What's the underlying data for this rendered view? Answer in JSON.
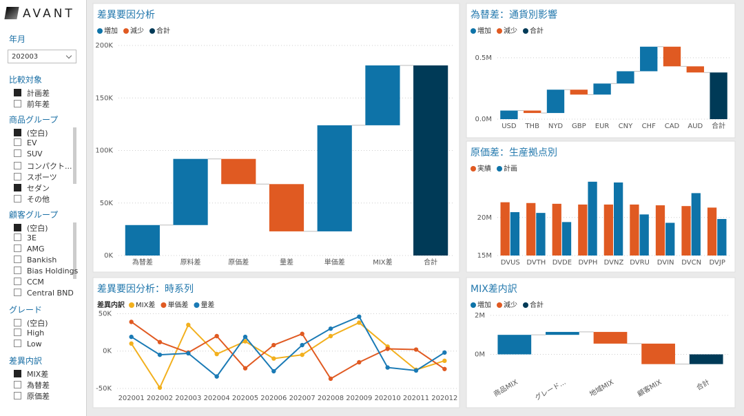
{
  "sidebar": {
    "logo": "AVANT",
    "date_filter": {
      "label": "年月",
      "value": "202003"
    },
    "slicers": [
      {
        "title": "比較対象",
        "items": [
          {
            "label": "計画差",
            "checked": true
          },
          {
            "label": "前年差",
            "checked": false
          }
        ]
      },
      {
        "title": "商品グループ",
        "items": [
          {
            "label": "(空白)",
            "checked": true
          },
          {
            "label": "EV",
            "checked": false
          },
          {
            "label": "SUV",
            "checked": false
          },
          {
            "label": "コンパクト...",
            "checked": false
          },
          {
            "label": "スポーツ",
            "checked": false
          },
          {
            "label": "セダン",
            "checked": true
          },
          {
            "label": "その他",
            "checked": false
          }
        ]
      },
      {
        "title": "顧客グループ",
        "items": [
          {
            "label": "(空白)",
            "checked": true
          },
          {
            "label": "3E",
            "checked": false
          },
          {
            "label": "AMG",
            "checked": false
          },
          {
            "label": "Bankish",
            "checked": false
          },
          {
            "label": "Bias Holdings",
            "checked": false
          },
          {
            "label": "CCM",
            "checked": false
          },
          {
            "label": "Central BND",
            "checked": false
          }
        ]
      },
      {
        "title": "グレード",
        "items": [
          {
            "label": "(空白)",
            "checked": false
          },
          {
            "label": "High",
            "checked": false
          },
          {
            "label": "Low",
            "checked": false
          }
        ]
      },
      {
        "title": "差異内訳",
        "items": [
          {
            "label": "MIX差",
            "checked": true
          },
          {
            "label": "為替差",
            "checked": false
          },
          {
            "label": "原価差",
            "checked": false
          }
        ]
      }
    ]
  },
  "chart_data": [
    {
      "type": "waterfall",
      "title": "差異要因分析",
      "legend_items": [
        {
          "name": "増加",
          "color": "#0e73a8"
        },
        {
          "name": "減少",
          "color": "#e05a22"
        },
        {
          "name": "合計",
          "color": "#003a57"
        }
      ],
      "categories": [
        "為替差",
        "原料差",
        "原価差",
        "量差",
        "単価差",
        "MIX差",
        "合計"
      ],
      "values": [
        29000,
        63000,
        -24000,
        -45000,
        101000,
        57000,
        181000
      ],
      "ylim": [
        0,
        200000
      ],
      "yticks": [
        {
          "value": 0,
          "label": "0K"
        },
        {
          "value": 50000,
          "label": "50K"
        },
        {
          "value": 100000,
          "label": "100K"
        },
        {
          "value": 150000,
          "label": "150K"
        },
        {
          "value": 200000,
          "label": "200K"
        }
      ],
      "grid": true
    },
    {
      "type": "waterfall",
      "title": "為替差：通貨別影響",
      "legend_items": [
        {
          "name": "増加",
          "color": "#0e73a8"
        },
        {
          "name": "減少",
          "color": "#e05a22"
        },
        {
          "name": "合計",
          "color": "#003a57"
        }
      ],
      "categories": [
        "USD",
        "THB",
        "NYD",
        "GBP",
        "EUR",
        "CNY",
        "CHF",
        "CAD",
        "AUD",
        "合計"
      ],
      "values": [
        70000,
        -20000,
        190000,
        -40000,
        90000,
        100000,
        200000,
        -160000,
        -50000,
        380000
      ],
      "ylim": [
        0,
        600000
      ],
      "yticks": [
        {
          "value": 0,
          "label": "0.0M"
        },
        {
          "value": 500000,
          "label": "0.5M"
        }
      ],
      "grid": true
    },
    {
      "type": "grouped_bar",
      "title": "原価差：生産拠点別",
      "categories": [
        "DVUS",
        "DVTH",
        "DVDE",
        "DVPH",
        "DVNZ",
        "DVRU",
        "DVIN",
        "DVCN",
        "DVJP"
      ],
      "series": [
        {
          "name": "実績",
          "color": "#e05a22",
          "values": [
            22000000,
            21900000,
            21800000,
            21700000,
            21700000,
            21700000,
            21600000,
            21500000,
            21300000
          ]
        },
        {
          "name": "計画",
          "color": "#0e73a8",
          "values": [
            20700000,
            20600000,
            19400000,
            24700000,
            24600000,
            20400000,
            19300000,
            23200000,
            19800000
          ]
        }
      ],
      "ylim": [
        15000000,
        25500000
      ],
      "yticks": [
        {
          "value": 15000000,
          "label": "15M"
        },
        {
          "value": 20000000,
          "label": "20M"
        }
      ],
      "grid": true
    },
    {
      "type": "line",
      "title": "差異要因分析：時系列",
      "legend_title": "差異内訳",
      "categories": [
        "202001",
        "202002",
        "202003",
        "202004",
        "202005",
        "202006",
        "202007",
        "202008",
        "202009",
        "202010",
        "202011",
        "202012"
      ],
      "series": [
        {
          "name": "MIX差",
          "color": "#f2b01e",
          "values": [
            10000,
            -49000,
            35000,
            -4000,
            13000,
            -10000,
            -5000,
            20000,
            38000,
            6000,
            -25000,
            -13000
          ]
        },
        {
          "name": "単価差",
          "color": "#e05a22",
          "values": [
            39000,
            12000,
            -2000,
            20000,
            -23000,
            8000,
            23000,
            -37000,
            -15000,
            3000,
            2000,
            -24000
          ]
        },
        {
          "name": "量差",
          "color": "#1a7ab5",
          "values": [
            19000,
            -5000,
            -3000,
            -34000,
            19000,
            -27000,
            8000,
            30000,
            46000,
            -22000,
            -26000,
            -2000
          ]
        }
      ],
      "ylim": [
        -50000,
        55000
      ],
      "yticks": [
        {
          "value": -50000,
          "label": "-50K"
        },
        {
          "value": 0,
          "label": "0K"
        },
        {
          "value": 50000,
          "label": "50K"
        }
      ],
      "grid": true
    },
    {
      "type": "waterfall",
      "title": "MIX差内訳",
      "legend_items": [
        {
          "name": "増加",
          "color": "#0e73a8"
        },
        {
          "name": "減少",
          "color": "#e05a22"
        },
        {
          "name": "合計",
          "color": "#003a57"
        }
      ],
      "categories": [
        "商品MIX",
        "グレード...",
        "地域MIX",
        "顧客MIX",
        "合計"
      ],
      "values": [
        1000000,
        150000,
        -600000,
        -1050000,
        -500000
      ],
      "ylim": [
        -900000,
        2100000
      ],
      "yticks": [
        {
          "value": 0,
          "label": "0M"
        },
        {
          "value": 2000000,
          "label": "2M"
        }
      ],
      "grid": true
    }
  ]
}
